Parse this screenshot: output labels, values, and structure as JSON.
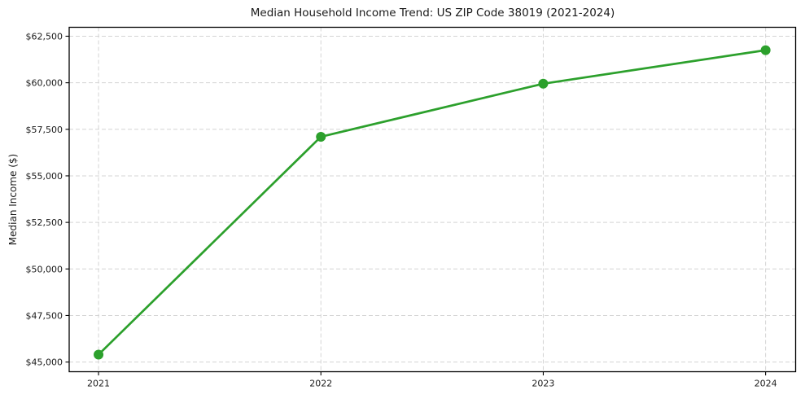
{
  "chart_data": {
    "type": "line",
    "title": "Median Household Income Trend: US ZIP Code 38019 (2021-2024)",
    "xlabel": "",
    "ylabel": "Median Income ($)",
    "x": [
      2021,
      2022,
      2023,
      2024
    ],
    "series": [
      {
        "name": "Median Household Income",
        "values": [
          45400,
          57100,
          59950,
          61750
        ]
      }
    ],
    "x_tick_labels": [
      "2021",
      "2022",
      "2023",
      "2024"
    ],
    "y_ticks": [
      45000,
      47500,
      50000,
      52500,
      55000,
      57500,
      60000,
      62500
    ],
    "y_tick_labels": [
      "$45,000",
      "$47,500",
      "$50,000",
      "$52,500",
      "$55,000",
      "$57,500",
      "$60,000",
      "$62,500"
    ],
    "xlim": [
      2020.868,
      2024.135
    ],
    "ylim": [
      44480,
      62980
    ],
    "grid": true,
    "grid_style": "dashed",
    "legend_position": "none",
    "line_color": "#2ca02c",
    "marker": "circle",
    "grid_color": "#d4d4d4",
    "frame_color": "#000000",
    "background_color": "#ffffff"
  }
}
